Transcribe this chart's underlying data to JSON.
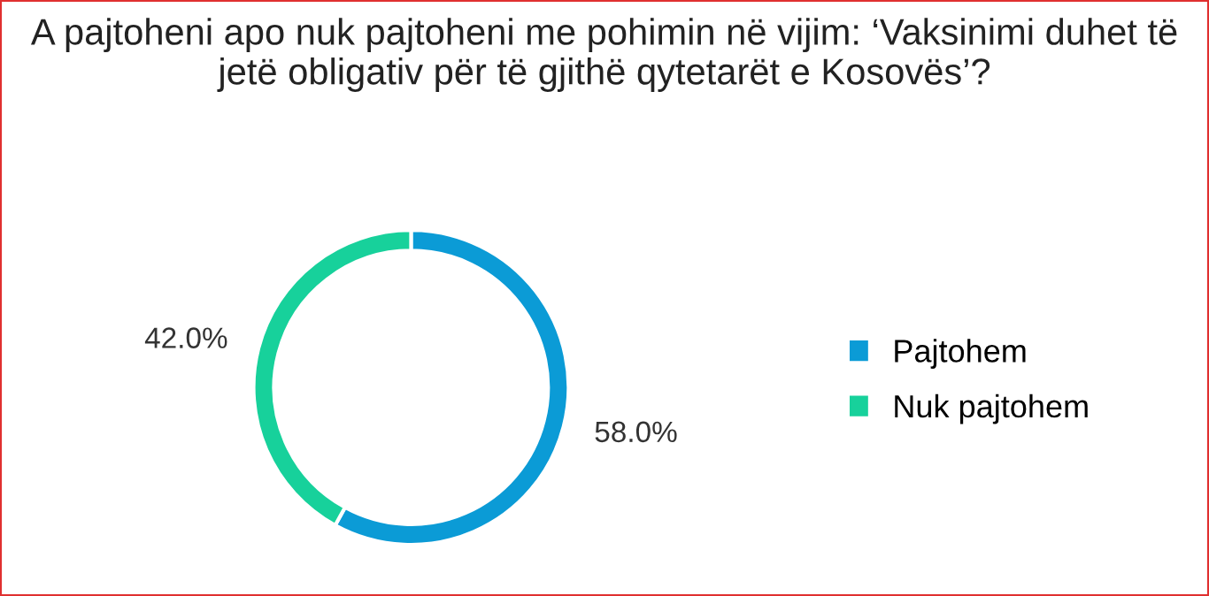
{
  "chart_data": {
    "type": "donut",
    "title": "A pajtoheni apo nuk pajtoheni me pohimin në vijim: ‘Vaksinimi duhet të jetë obligativ për të gjithë qytetarët e Kosovës’?",
    "categories": [
      "Pajtohem",
      "Nuk pajtohem"
    ],
    "values": [
      58.0,
      42.0
    ],
    "colors": [
      "#0b9bd6",
      "#17d19b"
    ],
    "value_labels": [
      "58.0%",
      "42.0%"
    ],
    "legend": "right"
  }
}
